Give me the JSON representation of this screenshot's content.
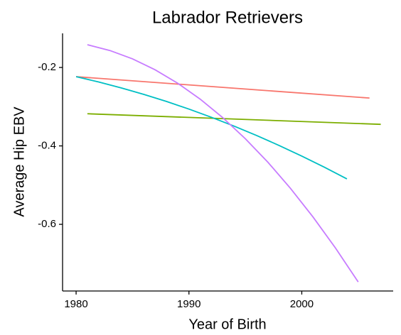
{
  "chart_data": {
    "type": "line",
    "title": "Labrador Retrievers",
    "x_label": "Year of Birth",
    "y_label": "Average Hip EBV",
    "xlim": [
      1978.8,
      2008.1
    ],
    "xticks": [
      1980,
      1990,
      2000
    ],
    "ylim": [
      -0.77,
      -0.113
    ],
    "yticks": [
      -0.2,
      -0.4,
      -0.6
    ],
    "series": [
      {
        "color": "#F8766D",
        "x": [
          1980,
          2006
        ],
        "values": [
          -0.2235,
          -0.278
        ]
      },
      {
        "color": "#7CAE00",
        "x": [
          1981,
          2007
        ],
        "values": [
          -0.318,
          -0.345
        ]
      },
      {
        "color": "#00BFC4",
        "x": [
          1980,
          1982,
          1984,
          1986,
          1988,
          1990,
          1992,
          1994,
          1996,
          1998,
          2000,
          2002,
          2004
        ],
        "values": [
          -0.2235,
          -0.237,
          -0.2521,
          -0.2686,
          -0.2866,
          -0.3061,
          -0.3271,
          -0.3496,
          -0.3735,
          -0.399,
          -0.4259,
          -0.4543,
          -0.4842
        ]
      },
      {
        "color": "#C77CFF",
        "x": [
          1981,
          1983,
          1985,
          1987,
          1989,
          1991,
          1993,
          1995,
          1997,
          1999,
          2001,
          2003,
          2005
        ],
        "values": [
          -0.142,
          -0.1568,
          -0.1781,
          -0.2059,
          -0.2401,
          -0.2808,
          -0.328,
          -0.3817,
          -0.4417,
          -0.5083,
          -0.5814,
          -0.661,
          -0.747
        ]
      }
    ]
  }
}
